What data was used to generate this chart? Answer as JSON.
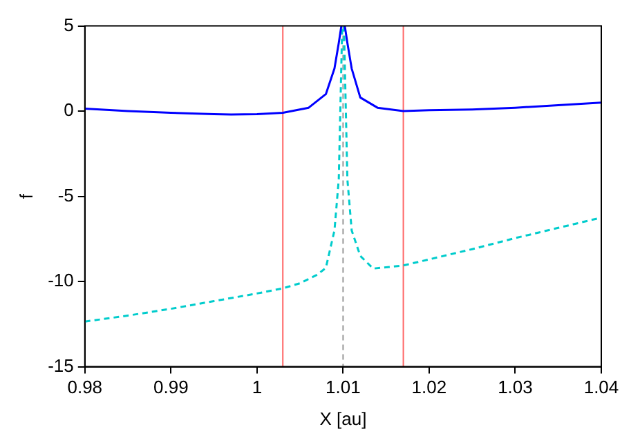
{
  "chart_data": {
    "type": "line",
    "xlabel": "X [au]",
    "ylabel": "f",
    "xlim": [
      0.98,
      1.04
    ],
    "ylim": [
      -15,
      5
    ],
    "xticks": [
      0.98,
      0.99,
      1,
      1.01,
      1.02,
      1.03,
      1.04
    ],
    "yticks": [
      -15,
      -10,
      -5,
      0,
      5
    ],
    "grid": false,
    "legend": false,
    "marker": "none",
    "series": [
      {
        "color": "#0000ff",
        "line_style": "solid",
        "x": [
          0.98,
          0.985,
          0.99,
          0.995,
          0.997,
          1.0,
          1.003,
          1.006,
          1.008,
          1.009,
          1.0095,
          1.0098,
          null,
          1.0102,
          1.0105,
          1.011,
          1.012,
          1.014,
          1.017,
          1.02,
          1.025,
          1.03,
          1.035,
          1.04
        ],
        "values": [
          0.15,
          0.0,
          -0.1,
          -0.18,
          -0.2,
          -0.18,
          -0.1,
          0.2,
          1,
          2.5,
          4,
          5,
          null,
          5,
          4,
          2.5,
          0.8,
          0.2,
          0.0,
          0.05,
          0.1,
          0.2,
          0.35,
          0.5
        ]
      },
      {
        "color": "#00cccc",
        "line_style": "dashed",
        "x": [
          0.98,
          0.985,
          0.99,
          0.995,
          1.0,
          1.003,
          1.005,
          1.007,
          1.008,
          1.009,
          1.0095,
          1.0099,
          null,
          1.0101,
          1.0105,
          1.011,
          1.012,
          1.0135,
          1.017,
          1.02,
          1.025,
          1.03,
          1.035,
          1.04
        ],
        "values": [
          -12.35,
          -12.0,
          -11.6,
          -11.15,
          -10.7,
          -10.4,
          -10.1,
          -9.6,
          -9.2,
          -7,
          -4,
          5,
          null,
          5,
          -4,
          -7,
          -8.5,
          -9.24,
          -9.06,
          -8.7,
          -8.1,
          -7.45,
          -6.85,
          -6.25
        ]
      }
    ],
    "ref_lines": [
      {
        "axis": "x",
        "value": 1.003,
        "color": "#ff6666",
        "line_style": "solid"
      },
      {
        "axis": "x",
        "value": 1.017,
        "color": "#ff6666",
        "line_style": "solid"
      },
      {
        "axis": "x",
        "value": 1.01,
        "color": "#999999",
        "line_style": "dashed"
      }
    ]
  }
}
